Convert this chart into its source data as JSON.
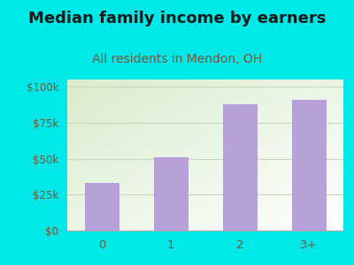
{
  "title": "Median family income by earners",
  "subtitle": "All residents in Mendon, OH",
  "categories": [
    "0",
    "1",
    "2",
    "3+"
  ],
  "values": [
    33000,
    51000,
    88000,
    91000
  ],
  "bar_color": "#b8a0d8",
  "title_color": "#1a1a1a",
  "subtitle_color": "#7a5535",
  "background_color": "#00e8e8",
  "plot_bg_color_topleft": "#d8edcc",
  "plot_bg_color_white": "#f5faf0",
  "yticks": [
    0,
    25000,
    50000,
    75000,
    100000
  ],
  "ytick_labels": [
    "$0",
    "$25k",
    "$50k",
    "$75k",
    "$100k"
  ],
  "ylim": [
    0,
    105000
  ],
  "title_fontsize": 13,
  "subtitle_fontsize": 10,
  "tick_color": "#7a5535",
  "grid_color": "#c8d8b8",
  "bar_width": 0.5
}
